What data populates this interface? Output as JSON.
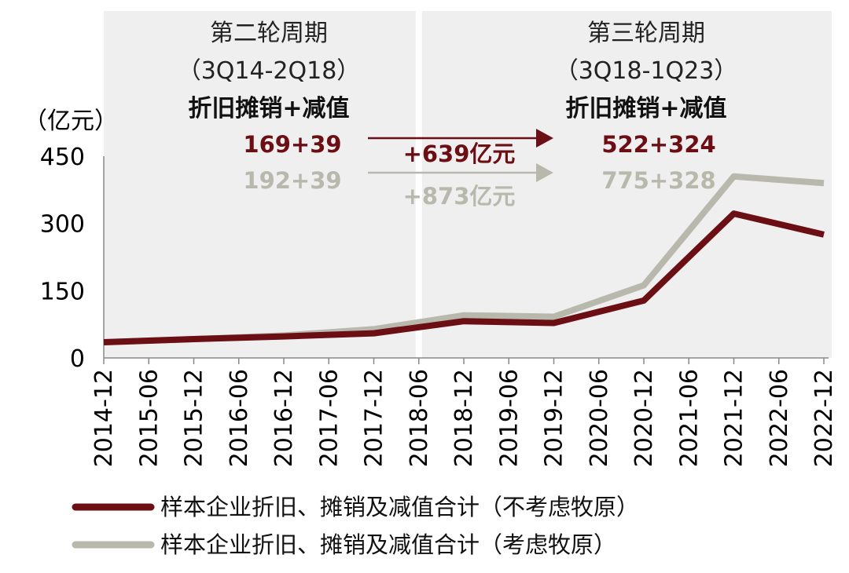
{
  "chart_data": {
    "type": "line",
    "ylabel": "（亿元）",
    "ylim": [
      0,
      450
    ],
    "yticks": [
      0,
      150,
      300,
      450
    ],
    "x_ticks": [
      "2014-12",
      "2015-06",
      "2015-12",
      "2016-06",
      "2016-12",
      "2017-06",
      "2017-12",
      "2018-06",
      "2018-12",
      "2019-06",
      "2019-12",
      "2020-06",
      "2020-12",
      "2021-06",
      "2021-12",
      "2022-06",
      "2022-12"
    ],
    "x": [
      "2014-12",
      "2015-12",
      "2016-12",
      "2017-12",
      "2018-12",
      "2019-12",
      "2020-12",
      "2021-12",
      "2022-12"
    ],
    "series": [
      {
        "name": "样本企业折旧、摊销及减值合计（不考虑牧原）",
        "color": "#6b0f14",
        "values": [
          35,
          42,
          48,
          55,
          82,
          78,
          128,
          322,
          275
        ]
      },
      {
        "name": "样本企业折旧、摊销及减值合计（考虑牧原）",
        "color": "#b8b8ac",
        "values": [
          35,
          42,
          50,
          64,
          95,
          92,
          162,
          405,
          390
        ]
      }
    ],
    "periods": [
      {
        "title": "第二轮周期",
        "range": "（3Q14-2Q18）",
        "subtitle": "折旧摊销+减值",
        "value_a": "169+39",
        "value_b": "192+39",
        "start": "2014-12",
        "end": "2018-06"
      },
      {
        "title": "第三轮周期",
        "range": "（3Q18-1Q23）",
        "subtitle": "折旧摊销+减值",
        "value_a": "522+324",
        "value_b": "775+328",
        "start": "2018-06",
        "end": "2022-12"
      }
    ],
    "arrows": [
      {
        "label": "+639亿元",
        "color": "#6b0f14"
      },
      {
        "label": "+873亿元",
        "color": "#b8b8ac"
      }
    ]
  }
}
